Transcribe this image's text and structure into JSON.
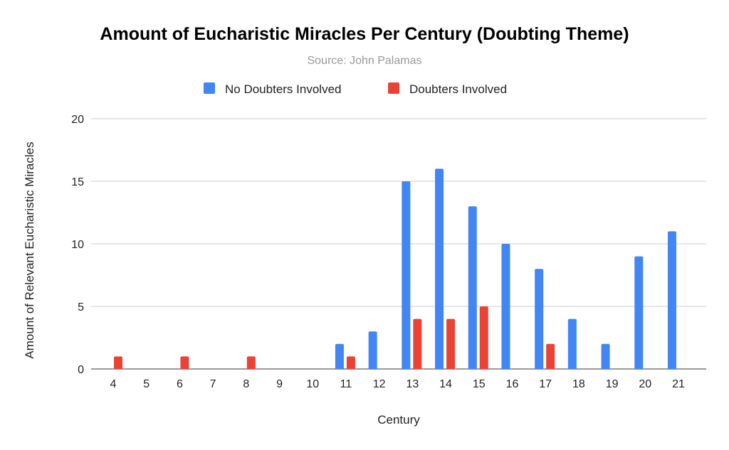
{
  "chart_data": {
    "type": "bar",
    "title": "Amount of Eucharistic Miracles Per Century (Doubting Theme)",
    "subtitle": "Source: John Palamas",
    "xlabel": "Century",
    "ylabel": "Amount of Relevant Eucharistic Miracles",
    "ylim": [
      0,
      20
    ],
    "yticks": [
      "0",
      "5",
      "10",
      "15",
      "20"
    ],
    "grid": true,
    "legend_position": "top",
    "categories": [
      "4",
      "5",
      "6",
      "7",
      "8",
      "9",
      "10",
      "11",
      "12",
      "13",
      "14",
      "15",
      "16",
      "17",
      "18",
      "19",
      "20",
      "21"
    ],
    "series": [
      {
        "name": "No Doubters Involved",
        "color": "#4285f4",
        "values": [
          0,
          0,
          0,
          0,
          0,
          0,
          0,
          2,
          3,
          15,
          16,
          13,
          10,
          8,
          4,
          2,
          9,
          11
        ]
      },
      {
        "name": "Doubters Involved",
        "color": "#ea4335",
        "values": [
          1,
          0,
          1,
          0,
          1,
          0,
          0,
          1,
          0,
          4,
          4,
          5,
          0,
          2,
          0,
          0,
          0,
          0
        ]
      }
    ]
  }
}
